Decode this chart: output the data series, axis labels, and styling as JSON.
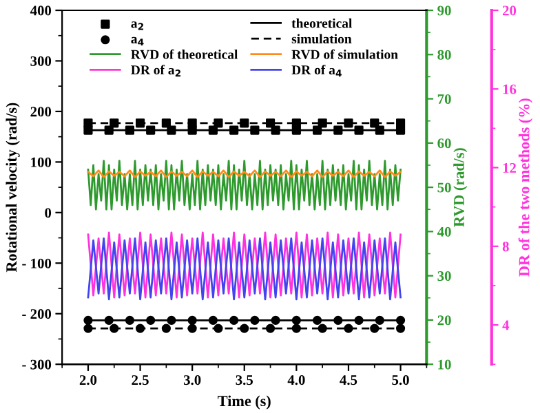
{
  "chart_data": {
    "type": "line",
    "xlabel": "Time (s)",
    "ylabel": "Rotational velocity (rad/s)",
    "y2label": "RVD (rad/s)",
    "y3label": "DR of the two methods (%)",
    "xlim": [
      1.75,
      5.25
    ],
    "xticks": [
      {
        "value": 2,
        "label": "2.0"
      },
      2.5,
      {
        "value": 3,
        "label": "3.0"
      },
      3.5,
      {
        "value": 4,
        "label": "4.0"
      },
      4.5,
      {
        "value": 5,
        "label": "5.0"
      }
    ],
    "ylim": [
      -300,
      400
    ],
    "yticks": [
      {
        "value": -300,
        "label": "- 300"
      },
      {
        "value": -200,
        "label": "- 200"
      },
      {
        "value": -100,
        "label": "- 100"
      },
      0,
      100,
      200,
      300,
      400
    ],
    "y2lim": [
      10,
      90
    ],
    "y2ticks": [
      10,
      20,
      30,
      40,
      50,
      60,
      70,
      80,
      90
    ],
    "y3lim": [
      2,
      20
    ],
    "y3ticks": [
      4,
      8,
      12,
      16,
      20
    ],
    "legend": "top",
    "grid": false,
    "series": [
      {
        "name": "a$_{2}$",
        "type": "scatter",
        "marker": "square",
        "color": "#000000",
        "x": [
          2.0,
          2.2,
          2.4,
          2.6,
          2.8,
          3.0,
          3.2,
          3.4,
          3.6,
          3.8,
          4.0,
          4.2,
          4.4,
          4.6,
          4.8,
          5.0,
          2.0,
          2.25,
          2.5,
          2.75,
          3.0,
          3.25,
          3.5,
          3.75,
          4.0,
          4.25,
          4.5,
          4.75,
          5.0
        ],
        "values": [
          163,
          163,
          163,
          163,
          163,
          163,
          163,
          163,
          163,
          163,
          163,
          163,
          163,
          163,
          163,
          163,
          177,
          177,
          177,
          177,
          177,
          177,
          177,
          177,
          177,
          177,
          177,
          177,
          177
        ]
      },
      {
        "name": "a$_{4}$",
        "type": "scatter",
        "marker": "circle",
        "color": "#000000",
        "x": [
          2.0,
          2.2,
          2.4,
          2.6,
          2.8,
          3.0,
          3.2,
          3.4,
          3.6,
          3.8,
          4.0,
          4.2,
          4.4,
          4.6,
          4.8,
          5.0,
          2.0,
          2.25,
          2.5,
          2.75,
          3.0,
          3.25,
          3.5,
          3.75,
          4.0,
          4.25,
          4.5,
          4.75,
          5.0
        ],
        "values": [
          -213,
          -213,
          -213,
          -213,
          -213,
          -213,
          -213,
          -213,
          -213,
          -213,
          -213,
          -213,
          -213,
          -213,
          -213,
          -213,
          -229,
          -229,
          -229,
          -229,
          -229,
          -229,
          -229,
          -229,
          -229,
          -229,
          -229,
          -229,
          -229
        ]
      },
      {
        "name": "RVD of theoretical",
        "axis": "y2",
        "color": "#2e9a2e",
        "x": [
          2.0,
          2.025,
          2.05,
          2.075,
          2.1,
          2.125,
          2.15,
          2.175,
          2.2,
          2.225,
          2.25,
          2.275,
          2.3,
          2.325,
          2.35,
          2.375,
          2.4,
          2.425,
          2.45,
          2.475,
          2.5,
          2.525,
          2.55,
          2.575,
          2.6,
          2.625,
          2.65,
          2.675,
          2.7,
          2.725,
          2.75,
          2.775,
          2.8,
          2.825,
          2.85,
          2.875,
          2.9,
          2.925,
          2.95,
          2.975,
          3.0,
          3.025,
          3.05,
          3.075,
          3.1,
          3.125,
          3.15,
          3.175,
          3.2,
          3.225,
          3.25,
          3.275,
          3.3,
          3.325,
          3.35,
          3.375,
          3.4,
          3.425,
          3.45,
          3.475,
          3.5,
          3.525,
          3.55,
          3.575,
          3.6,
          3.625,
          3.65,
          3.675,
          3.7,
          3.725,
          3.75,
          3.775,
          3.8,
          3.825,
          3.85,
          3.875,
          3.9,
          3.925,
          3.95,
          3.975,
          4.0,
          4.025,
          4.05,
          4.075,
          4.1,
          4.125,
          4.15,
          4.175,
          4.2,
          4.225,
          4.25,
          4.275,
          4.3,
          4.325,
          4.35,
          4.375,
          4.4,
          4.425,
          4.45,
          4.475,
          4.5,
          4.525,
          4.55,
          4.575,
          4.6,
          4.625,
          4.65,
          4.675,
          4.7,
          4.725,
          4.75,
          4.775,
          4.8,
          4.825,
          4.85,
          4.875,
          4.9,
          4.925,
          4.95,
          4.975,
          5.0
        ],
        "values": [
          54,
          46,
          55,
          45,
          53,
          47,
          56,
          45,
          55,
          45,
          54,
          47,
          56,
          46,
          53,
          45,
          53,
          46,
          56,
          45,
          54,
          46,
          55,
          47,
          54,
          46,
          55,
          45,
          53,
          47,
          56,
          45,
          55,
          45,
          54,
          47,
          56,
          46,
          53,
          45,
          53,
          46,
          56,
          45,
          54,
          46,
          55,
          47,
          54,
          46,
          55,
          45,
          53,
          47,
          56,
          45,
          55,
          45,
          54,
          47,
          56,
          46,
          53,
          45,
          53,
          46,
          56,
          45,
          54,
          46,
          55,
          47,
          54,
          46,
          55,
          45,
          53,
          47,
          56,
          45,
          55,
          45,
          54,
          47,
          56,
          46,
          53,
          45,
          53,
          46,
          56,
          45,
          54,
          46,
          55,
          47,
          54,
          46,
          55,
          45,
          53,
          47,
          56,
          45,
          55,
          45,
          54,
          47,
          56,
          46,
          53,
          45,
          53,
          46,
          56,
          45,
          54,
          46,
          55,
          47,
          54
        ]
      },
      {
        "name": "DR of a$_{2}$",
        "axis": "y3",
        "color": "#ff33dd",
        "x": [
          2.0,
          2.05,
          2.1,
          2.15,
          2.2,
          2.25,
          2.3,
          2.35,
          2.4,
          2.45,
          2.5,
          2.55,
          2.6,
          2.65,
          2.7,
          2.75,
          2.8,
          2.85,
          2.9,
          2.95,
          3.0,
          3.05,
          3.1,
          3.15,
          3.2,
          3.25,
          3.3,
          3.35,
          3.4,
          3.45,
          3.5,
          3.55,
          3.6,
          3.65,
          3.7,
          3.75,
          3.8,
          3.85,
          3.9,
          3.95,
          4.0,
          4.05,
          4.1,
          4.15,
          4.2,
          4.25,
          4.3,
          4.35,
          4.4,
          4.45,
          4.5,
          4.55,
          4.6,
          4.65,
          4.7,
          4.75,
          4.8,
          4.85,
          4.9,
          4.95,
          5.0
        ],
        "values": [
          8.6,
          5.5,
          8.4,
          5.6,
          8.7,
          5.4,
          8.6,
          5.5,
          8.4,
          5.6,
          8.7,
          5.4,
          8.6,
          5.5,
          8.4,
          5.6,
          8.7,
          5.4,
          8.6,
          5.5,
          8.4,
          5.6,
          8.7,
          5.4,
          8.6,
          5.5,
          8.4,
          5.6,
          8.7,
          5.4,
          8.6,
          5.5,
          8.4,
          5.6,
          8.7,
          5.4,
          8.6,
          5.5,
          8.4,
          5.6,
          8.7,
          5.4,
          8.6,
          5.5,
          8.4,
          5.6,
          8.7,
          5.4,
          8.6,
          5.5,
          8.4,
          5.6,
          8.7,
          5.4,
          8.6,
          5.5,
          8.4,
          5.6,
          8.7,
          5.4,
          8.6
        ]
      },
      {
        "name": "theoretical",
        "line_style": "solid",
        "color": "#000000",
        "x": [
          2.0,
          5.0
        ],
        "values": [
          163,
          163
        ]
      },
      {
        "name": "simulation",
        "line_style": "dashed",
        "color": "#000000",
        "x": [
          2.0,
          5.0
        ],
        "values": [
          177,
          177
        ]
      },
      {
        "name": "RVD of simulation",
        "axis": "y2",
        "color": "#ff8c1a",
        "x": [
          2.0,
          2.05,
          2.1,
          2.15,
          2.2,
          2.25,
          2.3,
          2.35,
          2.4,
          2.45,
          2.5,
          2.55,
          2.6,
          2.65,
          2.7,
          2.75,
          2.8,
          2.85,
          2.9,
          2.95,
          3.0,
          3.05,
          3.1,
          3.15,
          3.2,
          3.25,
          3.3,
          3.35,
          3.4,
          3.45,
          3.5,
          3.55,
          3.6,
          3.65,
          3.7,
          3.75,
          3.8,
          3.85,
          3.9,
          3.95,
          4.0,
          4.05,
          4.1,
          4.15,
          4.2,
          4.25,
          4.3,
          4.35,
          4.4,
          4.45,
          4.5,
          4.55,
          4.6,
          4.65,
          4.7,
          4.75,
          4.8,
          4.85,
          4.9,
          4.95,
          5.0
        ],
        "values": [
          53.5,
          52.5,
          53.8,
          52.3,
          53.6,
          52.6,
          53.5,
          52.5,
          53.8,
          52.3,
          53.6,
          52.6,
          53.5,
          52.5,
          53.8,
          52.3,
          53.6,
          52.6,
          53.5,
          52.5,
          53.8,
          52.3,
          53.6,
          52.6,
          53.5,
          52.5,
          53.8,
          52.3,
          53.6,
          52.6,
          53.5,
          52.5,
          53.8,
          52.3,
          53.6,
          52.6,
          53.5,
          52.5,
          53.8,
          52.3,
          53.6,
          52.6,
          53.5,
          52.5,
          53.8,
          52.3,
          53.6,
          52.6,
          53.5,
          52.5,
          53.8,
          52.3,
          53.6,
          52.6,
          53.5,
          52.5,
          53.8,
          52.3,
          53.6,
          52.6,
          53.5
        ]
      },
      {
        "name": "DR of a$_{4}$",
        "axis": "y3",
        "color": "#4444ee",
        "x": [
          2.0,
          2.05,
          2.1,
          2.15,
          2.2,
          2.25,
          2.3,
          2.35,
          2.4,
          2.45,
          2.5,
          2.55,
          2.6,
          2.65,
          2.7,
          2.75,
          2.8,
          2.85,
          2.9,
          2.95,
          3.0,
          3.05,
          3.1,
          3.15,
          3.2,
          3.25,
          3.3,
          3.35,
          3.4,
          3.45,
          3.5,
          3.55,
          3.6,
          3.65,
          3.7,
          3.75,
          3.8,
          3.85,
          3.9,
          3.95,
          4.0,
          4.05,
          4.1,
          4.15,
          4.2,
          4.25,
          4.3,
          4.35,
          4.4,
          4.45,
          4.5,
          4.55,
          4.6,
          4.65,
          4.7,
          4.75,
          4.8,
          4.85,
          4.9,
          4.95,
          5.0
        ],
        "values": [
          5.4,
          8.3,
          5.6,
          8.4,
          5.3,
          8.2,
          5.4,
          8.3,
          5.6,
          8.4,
          5.3,
          8.2,
          5.4,
          8.3,
          5.6,
          8.4,
          5.3,
          8.2,
          5.4,
          8.3,
          5.6,
          8.4,
          5.3,
          8.2,
          5.4,
          8.3,
          5.6,
          8.4,
          5.3,
          8.2,
          5.4,
          8.3,
          5.6,
          8.4,
          5.3,
          8.2,
          5.4,
          8.3,
          5.6,
          8.4,
          5.3,
          8.2,
          5.4,
          8.3,
          5.6,
          8.4,
          5.3,
          8.2,
          5.4,
          8.3,
          5.6,
          8.4,
          5.3,
          8.2,
          5.4,
          8.3,
          5.6,
          8.4,
          5.3,
          8.2,
          5.4
        ]
      },
      {
        "line_style": "solid",
        "color": "#000000",
        "x": [
          2.0,
          5.0
        ],
        "values": [
          -213,
          -213
        ]
      },
      {
        "line_style": "dashed",
        "color": "#000000",
        "x": [
          2.0,
          5.0
        ],
        "values": [
          -229,
          -229
        ]
      }
    ]
  }
}
